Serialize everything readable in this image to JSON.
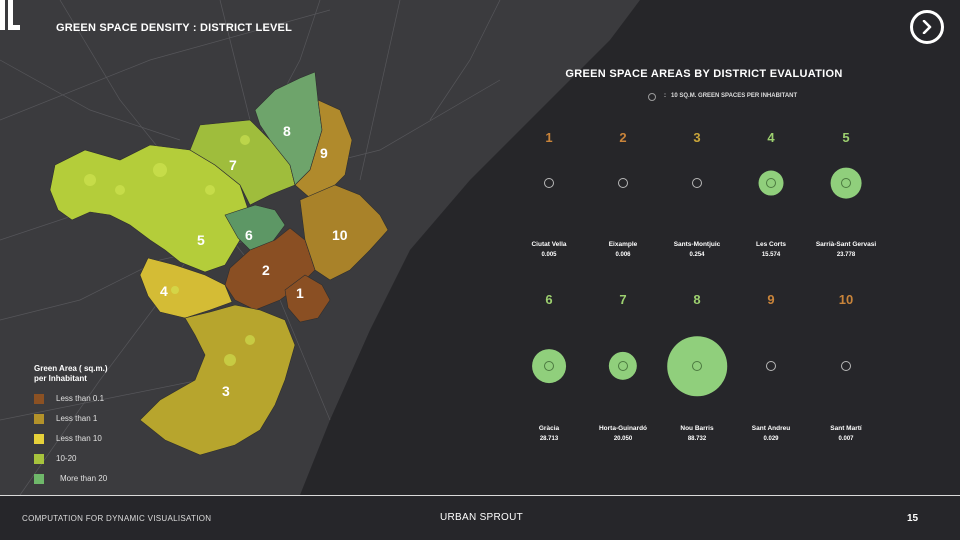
{
  "header": {
    "title": "GREEN SPACE DENSITY : DISTRICT LEVEL"
  },
  "map": {
    "district_labels": [
      "1",
      "2",
      "3",
      "4",
      "5",
      "6",
      "7",
      "8",
      "9",
      "10"
    ],
    "legend": {
      "title_line1": "Green Area ( sq.m.)",
      "title_line2": "per Inhabitant",
      "items": [
        {
          "label": "Less than 0.1",
          "color": "#8b5123"
        },
        {
          "label": "Less than 1",
          "color": "#b3922a"
        },
        {
          "label": "Less than 10",
          "color": "#e6d13a"
        },
        {
          "label": "10-20",
          "color": "#a7c33d"
        },
        {
          "label": "More than 20",
          "color": "#6fb86a"
        }
      ]
    }
  },
  "panel": {
    "title": "GREEN SPACE AREAS BY DISTRICT EVALUATION",
    "key_separator": ":",
    "key_text": "10 SQ.M. GREEN SPACES PER INHABITANT",
    "districts": [
      {
        "num": "1",
        "name": "Ciutat Vella",
        "value": "0.005",
        "color": "#c9843a"
      },
      {
        "num": "2",
        "name": "Eixample",
        "value": "0.006",
        "color": "#c9843a"
      },
      {
        "num": "3",
        "name": "Sants-Montjuic",
        "value": "0.254",
        "color": "#c9a53a"
      },
      {
        "num": "4",
        "name": "Les Corts",
        "value": "15.574",
        "color": "#9ccf6f"
      },
      {
        "num": "5",
        "name": "Sarrià-Sant Gervasi",
        "value": "23.778",
        "color": "#9ccf6f"
      },
      {
        "num": "6",
        "name": "Gràcia",
        "value": "28.713",
        "color": "#9ccf6f"
      },
      {
        "num": "7",
        "name": "Horta-Guinardó",
        "value": "20.050",
        "color": "#9ccf6f"
      },
      {
        "num": "8",
        "name": "Nou Barris",
        "value": "88.732",
        "color": "#9ccf6f"
      },
      {
        "num": "9",
        "name": "Sant Andreu",
        "value": "0.029",
        "color": "#c9843a"
      },
      {
        "num": "10",
        "name": "Sant Martí",
        "value": "0.007",
        "color": "#c9843a"
      }
    ]
  },
  "footer": {
    "left": "COMPUTATION FOR DYNAMIC VISUALISATION",
    "center": "URBAN SPROUT",
    "page": "15"
  }
}
